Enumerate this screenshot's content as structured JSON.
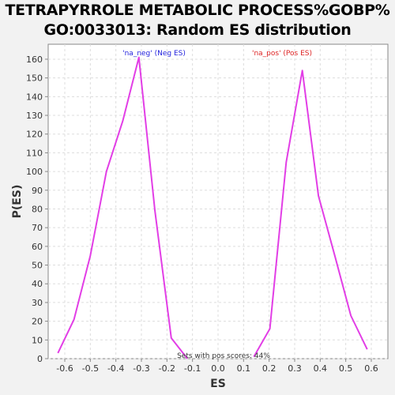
{
  "chart_data": {
    "type": "line",
    "title_line1": "TETRAPYRROLE METABOLIC PROCESS%GOBP%",
    "title_line2": "GO:0033013: Random ES distribution",
    "xlabel": "ES",
    "ylabel": "P(ES)",
    "xlim": [
      -0.665,
      0.665
    ],
    "ylim": [
      0,
      168
    ],
    "xticks": [
      -0.6,
      -0.5,
      -0.4,
      -0.3,
      -0.2,
      -0.1,
      0.0,
      0.1,
      0.2,
      0.3,
      0.4,
      0.5,
      0.6
    ],
    "xtick_labels": [
      "-0.6",
      "-0.5",
      "-0.4",
      "-0.3",
      "-0.2",
      "-0.1",
      "0.0",
      "0.1",
      "0.2",
      "0.3",
      "0.4",
      "0.5",
      "0.6"
    ],
    "yticks": [
      0,
      10,
      20,
      30,
      40,
      50,
      60,
      70,
      80,
      90,
      100,
      110,
      120,
      130,
      140,
      150,
      160
    ],
    "ytick_labels": [
      "0",
      "10",
      "20",
      "30",
      "40",
      "50",
      "60",
      "70",
      "80",
      "90",
      "100",
      "110",
      "120",
      "130",
      "140",
      "150",
      "160"
    ],
    "grid": true,
    "line_color": "#e23ee6",
    "series": [
      {
        "name": "'na_neg' (Neg ES)",
        "color": "#2222dd",
        "x": [
          -0.627,
          -0.564,
          -0.5,
          -0.437,
          -0.373,
          -0.31,
          -0.247,
          -0.183,
          -0.12
        ],
        "y": [
          3,
          21,
          55,
          100,
          127,
          161,
          79,
          11,
          0
        ]
      },
      {
        "name": "'na_pos' (Pos ES)",
        "color": "#dd2222",
        "x": [
          0.14,
          0.203,
          0.267,
          0.33,
          0.393,
          0.457,
          0.52,
          0.584
        ],
        "y": [
          1,
          16,
          105,
          154,
          87,
          55,
          23,
          5
        ]
      }
    ],
    "annotation": "Sets with pos scores: 44%"
  }
}
